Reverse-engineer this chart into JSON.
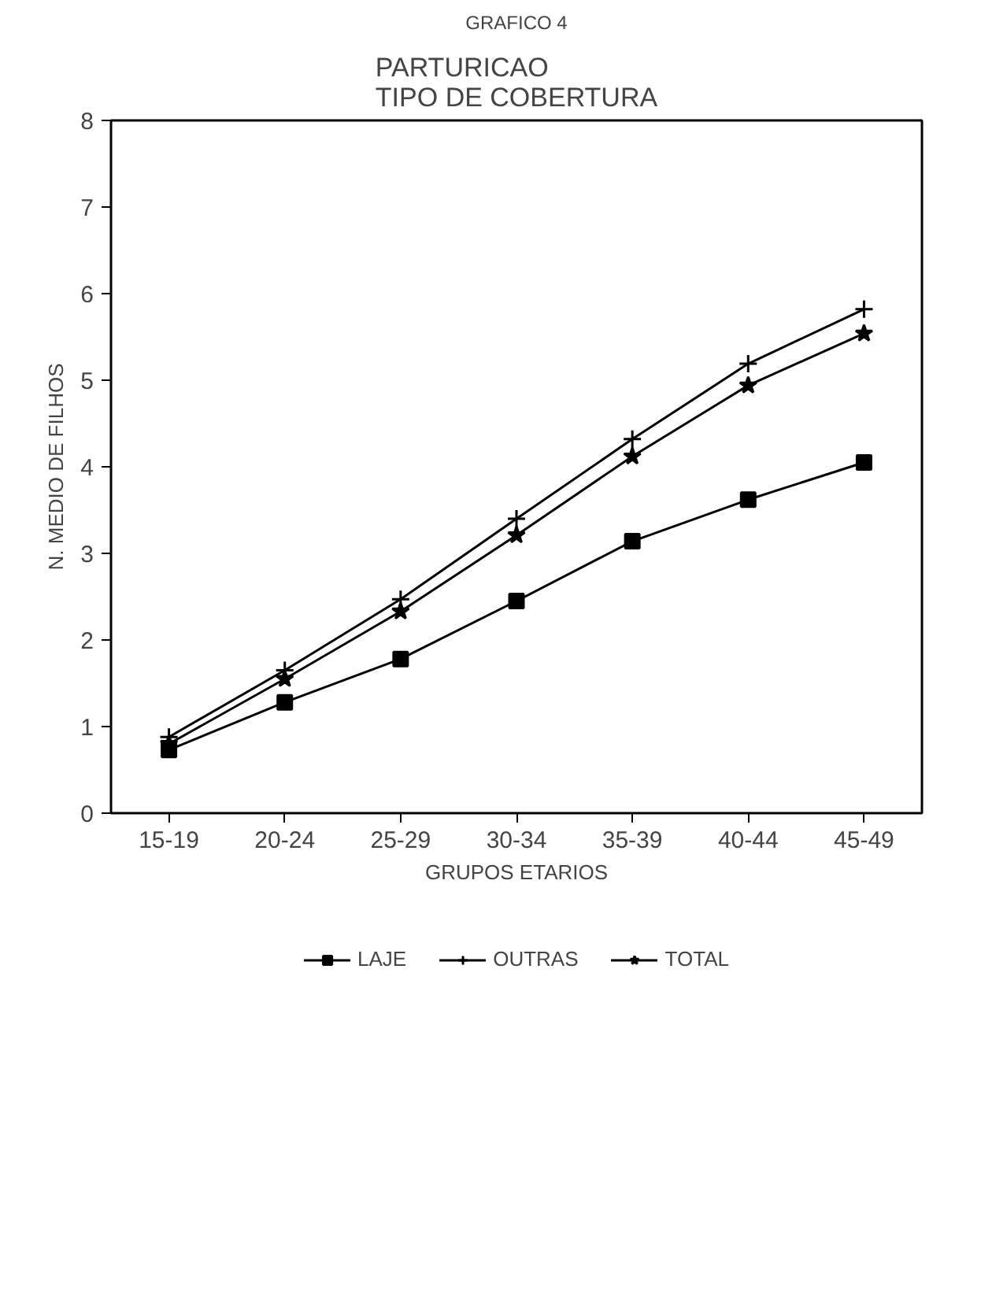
{
  "chart_data": {
    "type": "line",
    "title": "GRAFICO 4",
    "subtitle": "PARTURICAO\nTIPO DE COBERTURA",
    "xlabel": "GRUPOS ETARIOS",
    "ylabel": "N. MEDIO DE FILHOS",
    "categories": [
      "15-19",
      "20-24",
      "25-29",
      "30-34",
      "35-39",
      "40-44",
      "45-49"
    ],
    "ylim": [
      0,
      8
    ],
    "yticks": [
      0,
      1,
      2,
      3,
      4,
      5,
      6,
      7,
      8
    ],
    "grid": false,
    "legend": "bottom",
    "line_style": "solid",
    "series": [
      {
        "name": "LAJE",
        "color": "#000000",
        "marker": "square",
        "values": [
          0.73,
          1.28,
          1.78,
          2.45,
          3.14,
          3.62,
          4.05
        ]
      },
      {
        "name": "OUTRAS",
        "color": "#000000",
        "marker": "cross",
        "values": [
          0.88,
          1.65,
          2.47,
          3.4,
          4.32,
          5.19,
          5.82
        ]
      },
      {
        "name": "TOTAL",
        "color": "#000000",
        "marker": "star",
        "values": [
          0.8,
          1.55,
          2.33,
          3.21,
          4.12,
          4.94,
          5.54
        ]
      }
    ]
  }
}
